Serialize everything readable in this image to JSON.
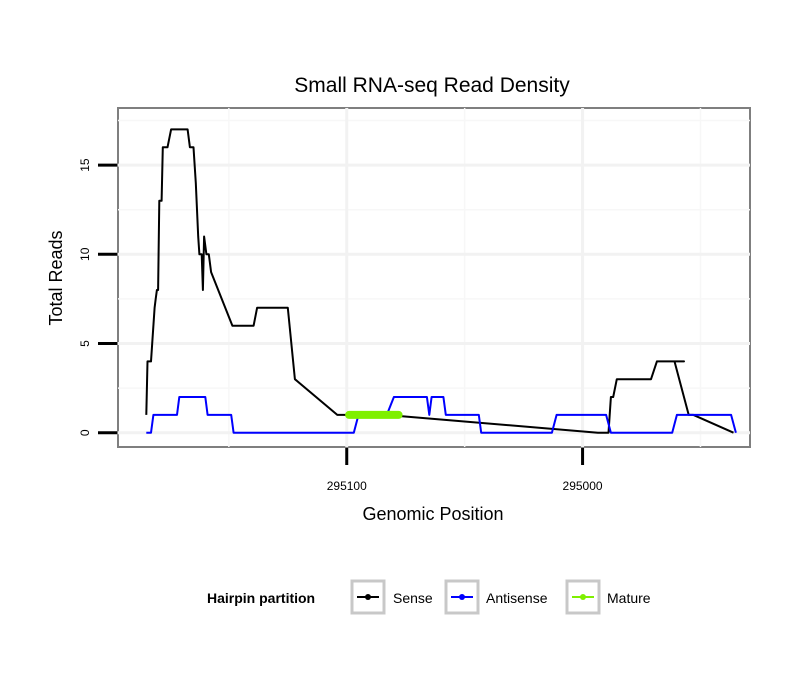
{
  "chart_data": {
    "type": "line",
    "title": "Small RNA-seq Read Density",
    "xlabel": "Genomic Position",
    "ylabel": "Total Reads",
    "xlim": [
      295197,
      294929
    ],
    "x_reversed": true,
    "ylim": [
      -0.8,
      18.2
    ],
    "x_ticks": [
      295100,
      295000
    ],
    "y_ticks": [
      0,
      5,
      10,
      15
    ],
    "grid": true,
    "legend": {
      "title": "Hairpin partition",
      "position": "bottom",
      "entries": [
        "Sense",
        "Antisense",
        "Mature"
      ]
    },
    "series": [
      {
        "name": "Sense",
        "color": "#000000",
        "x": [
          295185,
          295184.5,
          295184,
          295183,
          295182.5,
          295181.5,
          295181,
          295180.5,
          295180,
          295179.5,
          295178.5,
          295178,
          295176,
          295174.5,
          295174,
          295167.5,
          295166.5,
          295165,
          295164,
          295163.5,
          295163,
          295162.5,
          295162,
          295161.5,
          295161,
          295160.5,
          295159.5,
          295158.5,
          295157.5,
          295148.5,
          295147,
          295139.5,
          295138,
          295137.5,
          295137,
          295125,
          295122,
          295104,
          295102.5,
          295083.5,
          294993.5,
          294991.5,
          294990.5,
          294989,
          294988,
          294987,
          294985.5,
          294971,
          294968.5,
          294966,
          294957,
          294961,
          294955,
          294953,
          294936
        ],
        "y": [
          1,
          4,
          4,
          4,
          5,
          7,
          7.5,
          8,
          8,
          13,
          13,
          16,
          16,
          17,
          17,
          17,
          16,
          16,
          14,
          12.5,
          11,
          10,
          10,
          10,
          8,
          11,
          10,
          10,
          9,
          6,
          6,
          6,
          7,
          7,
          7,
          7,
          3,
          1,
          1,
          1,
          0,
          0,
          0,
          0,
          2,
          2,
          3,
          3,
          4,
          4,
          4,
          4,
          1,
          1,
          0
        ]
      },
      {
        "name": "Antisense",
        "color": "#0000ff",
        "x": [
          295185,
          295183,
          295182,
          295172,
          295171,
          295160,
          295159,
          295149,
          295148,
          295097,
          295095,
          295083,
          295080,
          295066,
          295065,
          295064,
          295059,
          295058,
          295044,
          295043,
          295034,
          295032,
          295013,
          295011,
          294990,
          294988,
          294962,
          294960,
          294937,
          294935
        ],
        "y": [
          0,
          0,
          1,
          1,
          2,
          2,
          1,
          1,
          0,
          0,
          1,
          1,
          2,
          2,
          1,
          2,
          2,
          1,
          1,
          0,
          0,
          0,
          0,
          1,
          1,
          0,
          0,
          1,
          1,
          0
        ]
      },
      {
        "name": "Mature",
        "color": "#7ff000",
        "x": [
          295099,
          295078
        ],
        "y": [
          1,
          1
        ]
      }
    ]
  }
}
